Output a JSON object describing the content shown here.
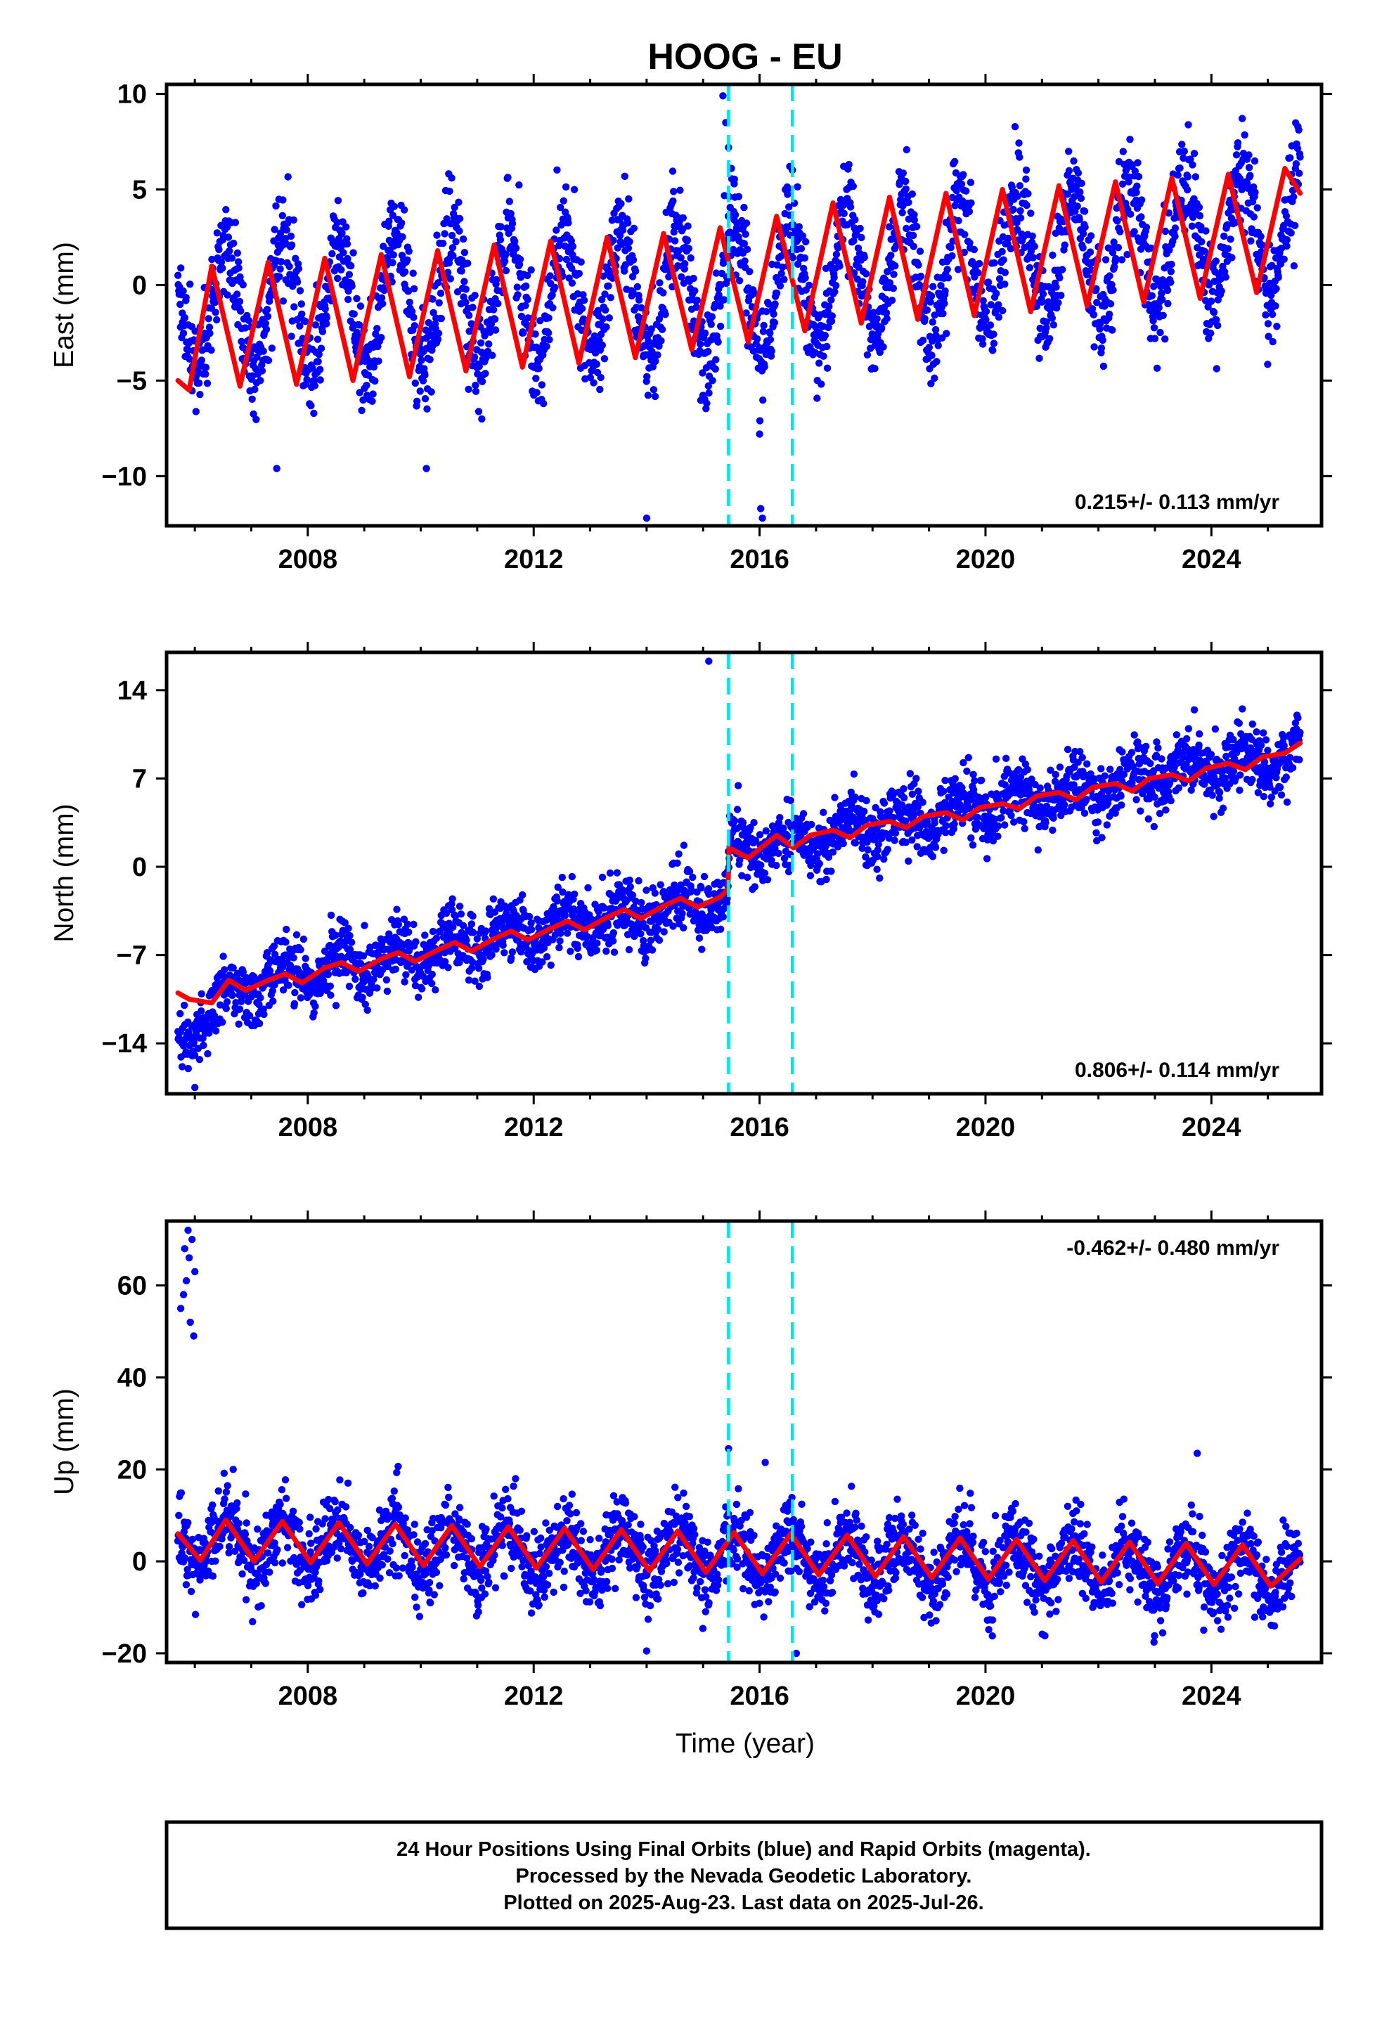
{
  "title": "HOOG - EU",
  "xlabel": "Time (year)",
  "footer": {
    "lines": [
      "24 Hour Positions Using Final Orbits (blue) and Rapid Orbits (magenta).",
      "Processed by the Nevada Geodetic Laboratory.",
      "Plotted on 2025-Aug-23. Last data on 2025-Jul-26."
    ]
  },
  "colors": {
    "data_points": "#0000ff",
    "model_fit": "#ff0000",
    "event_lines": "#00e5ee",
    "frame": "#000000"
  },
  "chart_data": [
    {
      "type": "scatter",
      "ylabel": "East (mm)",
      "xlim": [
        2005.5,
        2025.95
      ],
      "ylim": [
        -12.6,
        10.5
      ],
      "x_ticks": [
        2008,
        2012,
        2016,
        2020,
        2024
      ],
      "y_ticks": [
        -10,
        -5,
        0,
        5,
        10
      ],
      "rate_text": "0.215+/- 0.113 mm/yr",
      "rate_position": "bottom-right",
      "event_lines": [
        2015.45,
        2016.58
      ],
      "series": [
        {
          "kind": "daily-positions",
          "x_range": [
            2005.7,
            2025.57
          ],
          "trend": [
            [
              2005.7,
              -1.2
            ],
            [
              2015.4,
              -0.3
            ],
            [
              2015.5,
              -0.3
            ],
            [
              2025.57,
              2.9
            ]
          ],
          "annual_amplitude": 3.3,
          "scatter": 1.3,
          "outlier_points": [
            [
              2015.35,
              9.9
            ],
            [
              2015.4,
              8.5
            ],
            [
              2015.45,
              7.2
            ],
            [
              2015.5,
              6.1
            ],
            [
              2015.55,
              5.3
            ],
            [
              2014.0,
              -12.2
            ],
            [
              2016.0,
              -7.8
            ],
            [
              2016.02,
              -11.7
            ],
            [
              2016.05,
              -12.2
            ],
            [
              2010.1,
              -9.6
            ],
            [
              2007.45,
              -9.6
            ]
          ]
        },
        {
          "kind": "model-fit",
          "x": [
            2005.7,
            2005.9,
            2006.3,
            2006.8,
            2007.3,
            2007.8,
            2008.3,
            2008.8,
            2009.3,
            2009.8,
            2010.3,
            2010.8,
            2011.3,
            2011.8,
            2012.3,
            2012.8,
            2013.3,
            2013.8,
            2014.3,
            2014.8,
            2015.3,
            2015.8,
            2016.3,
            2016.8,
            2017.3,
            2017.8,
            2018.3,
            2018.8,
            2019.3,
            2019.8,
            2020.3,
            2020.8,
            2021.3,
            2021.8,
            2022.3,
            2022.8,
            2023.3,
            2023.8,
            2024.3,
            2024.8,
            2025.3,
            2025.57
          ],
          "y": [
            -5.0,
            -5.5,
            1.0,
            -5.3,
            1.2,
            -5.2,
            1.4,
            -5.0,
            1.6,
            -4.8,
            1.8,
            -4.5,
            2.1,
            -4.3,
            2.3,
            -4.1,
            2.5,
            -3.8,
            2.7,
            -3.4,
            3.0,
            -3.0,
            3.6,
            -2.4,
            4.3,
            -2.0,
            4.6,
            -1.8,
            4.8,
            -1.6,
            5.0,
            -1.4,
            5.2,
            -1.1,
            5.4,
            -0.9,
            5.6,
            -0.7,
            5.8,
            -0.4,
            6.1,
            4.8
          ]
        }
      ]
    },
    {
      "type": "scatter",
      "ylabel": "North (mm)",
      "xlim": [
        2005.5,
        2025.95
      ],
      "ylim": [
        -18,
        17
      ],
      "x_ticks": [
        2008,
        2012,
        2016,
        2020,
        2024
      ],
      "y_ticks": [
        -14,
        -7,
        0,
        7,
        14
      ],
      "rate_text": "0.806+/- 0.114 mm/yr",
      "rate_position": "bottom-right",
      "event_lines": [
        2015.45,
        2016.58
      ],
      "series": [
        {
          "kind": "daily-positions",
          "x_range": [
            2005.7,
            2025.57
          ],
          "trend": [
            [
              2005.7,
              -14.0
            ],
            [
              2006.2,
              -11.8
            ],
            [
              2007.0,
              -9.5
            ],
            [
              2008.0,
              -8.3
            ],
            [
              2010.0,
              -6.8
            ],
            [
              2012.0,
              -5.0
            ],
            [
              2013.5,
              -3.8
            ],
            [
              2015.44,
              -2.8
            ],
            [
              2015.46,
              1.2
            ],
            [
              2016.6,
              1.8
            ],
            [
              2018.0,
              3.2
            ],
            [
              2020.0,
              4.8
            ],
            [
              2022.0,
              6.3
            ],
            [
              2024.0,
              8.0
            ],
            [
              2025.57,
              8.8
            ]
          ],
          "annual_amplitude": 1.0,
          "scatter": 1.3,
          "outlier_points": [
            [
              2015.1,
              16.3
            ],
            [
              2008.5,
              -11.0
            ],
            [
              2005.8,
              -14.2
            ],
            [
              2006.0,
              -17.5
            ]
          ]
        },
        {
          "kind": "model-fit",
          "x": [
            2005.7,
            2005.9,
            2006.3,
            2006.6,
            2006.9,
            2007.3,
            2007.6,
            2007.9,
            2008.3,
            2008.6,
            2008.9,
            2009.3,
            2009.6,
            2009.9,
            2010.3,
            2010.6,
            2010.9,
            2011.3,
            2011.6,
            2011.9,
            2012.3,
            2012.6,
            2012.9,
            2013.3,
            2013.6,
            2013.9,
            2014.3,
            2014.6,
            2014.9,
            2015.3,
            2015.44,
            2015.46,
            2015.8,
            2016.3,
            2016.6,
            2016.9,
            2017.3,
            2017.6,
            2017.9,
            2018.3,
            2018.6,
            2018.9,
            2019.3,
            2019.6,
            2019.9,
            2020.3,
            2020.6,
            2020.9,
            2021.3,
            2021.6,
            2021.9,
            2022.3,
            2022.6,
            2022.9,
            2023.3,
            2023.6,
            2023.9,
            2024.3,
            2024.6,
            2024.9,
            2025.3,
            2025.57
          ],
          "y": [
            -10.0,
            -10.5,
            -10.8,
            -9.0,
            -9.8,
            -9.0,
            -8.5,
            -9.2,
            -8.0,
            -7.6,
            -8.3,
            -7.3,
            -6.8,
            -7.5,
            -6.6,
            -6.0,
            -6.7,
            -5.7,
            -5.1,
            -5.8,
            -4.9,
            -4.3,
            -5.0,
            -4.0,
            -3.4,
            -4.1,
            -3.1,
            -2.5,
            -3.2,
            -2.4,
            -1.8,
            1.5,
            0.7,
            2.5,
            1.5,
            2.5,
            2.9,
            2.3,
            3.3,
            3.6,
            3.1,
            4.0,
            4.3,
            3.7,
            4.7,
            5.0,
            4.6,
            5.6,
            5.9,
            5.3,
            6.3,
            6.6,
            6.0,
            7.0,
            7.3,
            6.8,
            7.8,
            8.2,
            7.7,
            8.7,
            9.0,
            9.8
          ]
        }
      ]
    },
    {
      "type": "scatter",
      "ylabel": "Up (mm)",
      "xlim": [
        2005.5,
        2025.95
      ],
      "ylim": [
        -22,
        74
      ],
      "x_ticks": [
        2008,
        2012,
        2016,
        2020,
        2024
      ],
      "y_ticks": [
        -20,
        0,
        20,
        40,
        60
      ],
      "rate_text": "-0.462+/- 0.480 mm/yr",
      "rate_position": "top-right",
      "event_lines": [
        2015.45,
        2016.58
      ],
      "series": [
        {
          "kind": "daily-positions",
          "x_range": [
            2005.7,
            2025.57
          ],
          "trend": [
            [
              2005.7,
              4.5
            ],
            [
              2025.57,
              -2.3
            ]
          ],
          "annual_amplitude": 5.0,
          "scatter": 4.2,
          "outlier_points": [
            [
              2005.75,
              55
            ],
            [
              2005.8,
              58
            ],
            [
              2005.85,
              61
            ],
            [
              2005.9,
              66
            ],
            [
              2005.95,
              70
            ],
            [
              2005.88,
              72
            ],
            [
              2005.92,
              52
            ],
            [
              2005.98,
              49
            ],
            [
              2006.0,
              63
            ],
            [
              2005.82,
              68
            ],
            [
              2015.45,
              24.5
            ],
            [
              2016.1,
              21.5
            ],
            [
              2023.75,
              23.5
            ],
            [
              2014.0,
              -19.5
            ],
            [
              2016.65,
              -20.0
            ]
          ]
        },
        {
          "kind": "model-fit",
          "x": [
            2005.7,
            2006.1,
            2006.55,
            2007.05,
            2007.55,
            2008.05,
            2008.55,
            2009.05,
            2009.55,
            2010.05,
            2010.55,
            2011.05,
            2011.55,
            2012.05,
            2012.55,
            2013.05,
            2013.55,
            2014.05,
            2014.55,
            2015.05,
            2015.55,
            2016.05,
            2016.55,
            2017.05,
            2017.55,
            2018.05,
            2018.55,
            2019.05,
            2019.55,
            2020.05,
            2020.55,
            2021.05,
            2021.55,
            2022.05,
            2022.55,
            2023.05,
            2023.55,
            2024.05,
            2024.55,
            2025.05,
            2025.57
          ],
          "y": [
            6.0,
            0.2,
            9.0,
            0.0,
            8.7,
            -0.3,
            8.4,
            -0.6,
            8.1,
            -0.9,
            7.8,
            -1.2,
            7.5,
            -1.5,
            7.2,
            -1.8,
            6.9,
            -2.1,
            6.6,
            -2.4,
            6.3,
            -2.7,
            6.0,
            -3.0,
            5.7,
            -3.3,
            5.4,
            -3.6,
            5.1,
            -3.9,
            4.8,
            -4.2,
            4.5,
            -4.5,
            4.2,
            -4.8,
            3.9,
            -5.1,
            3.6,
            -5.4,
            0.5
          ]
        }
      ]
    }
  ]
}
